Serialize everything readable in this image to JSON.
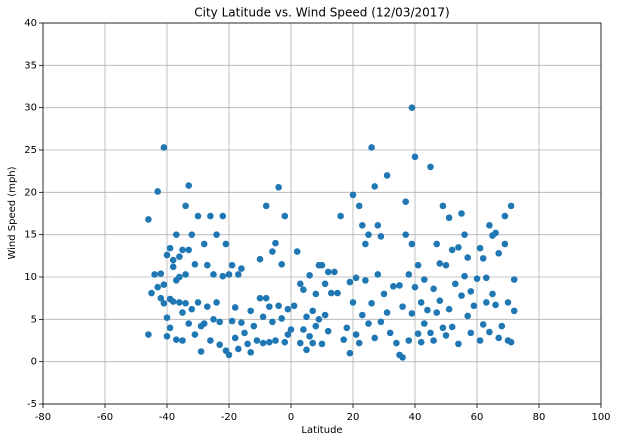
{
  "chart_data": {
    "type": "scatter",
    "title": "City Latitude vs. Wind Speed  (12/03/2017)",
    "x_label": "Latitude",
    "y_label": "Wind Speed (mph)",
    "color": "#1f77b4",
    "grid": true,
    "xlim": [
      -80,
      100
    ],
    "xticks": [
      -80,
      -60,
      -40,
      -20,
      0,
      20,
      40,
      60,
      80,
      100
    ],
    "ylim": [
      -5,
      40
    ],
    "yticks": [
      -5,
      0,
      5,
      10,
      15,
      20,
      25,
      30,
      35,
      40
    ],
    "x": [
      -46,
      -46,
      -45,
      -44,
      -43,
      -43,
      -42,
      -42,
      -41,
      -41,
      -41,
      -40,
      -40,
      -40,
      -39,
      -39,
      -39,
      -38,
      -38,
      -38,
      -37,
      -37,
      -37,
      -36,
      -36,
      -36,
      -35,
      -35,
      -35,
      -34,
      -34,
      -34,
      -33,
      -33,
      -33,
      -32,
      -32,
      -31,
      -31,
      -30,
      -30,
      -29,
      -29,
      -28,
      -28,
      -27,
      -27,
      -26,
      -26,
      -25,
      -25,
      -24,
      -24,
      -23,
      -23,
      -22,
      -22,
      -21,
      -21,
      -20,
      -20,
      -19,
      -19,
      -18,
      -18,
      -17,
      -17,
      -16,
      -16,
      -15,
      -14,
      -13,
      -13,
      -12,
      -11,
      -10,
      -10,
      -9,
      -9,
      -8,
      -8,
      -7,
      -7,
      -6,
      -6,
      -5,
      -5,
      -4,
      -4,
      -3,
      -3,
      -2,
      -2,
      -1,
      -1,
      0,
      1,
      2,
      3,
      3,
      4,
      4,
      5,
      5,
      6,
      6,
      7,
      7,
      8,
      8,
      9,
      9,
      10,
      10,
      11,
      11,
      12,
      12,
      13,
      14,
      15,
      16,
      17,
      18,
      19,
      19,
      20,
      20,
      21,
      21,
      22,
      22,
      23,
      23,
      24,
      24,
      25,
      25,
      26,
      26,
      27,
      27,
      28,
      28,
      29,
      29,
      30,
      31,
      31,
      32,
      33,
      34,
      35,
      35,
      36,
      36,
      37,
      37,
      38,
      38,
      39,
      39,
      39,
      40,
      40,
      41,
      41,
      42,
      42,
      43,
      43,
      44,
      45,
      45,
      46,
      46,
      47,
      47,
      48,
      48,
      49,
      49,
      50,
      50,
      51,
      51,
      52,
      52,
      53,
      54,
      54,
      55,
      55,
      56,
      56,
      57,
      57,
      58,
      58,
      59,
      60,
      61,
      61,
      62,
      62,
      63,
      63,
      64,
      64,
      65,
      65,
      66,
      66,
      67,
      67,
      68,
      69,
      69,
      70,
      70,
      71,
      71,
      72,
      72
    ],
    "values": [
      16.8,
      3.2,
      8.1,
      10.3,
      20.1,
      8.8,
      7.5,
      10.4,
      25.3,
      9.1,
      6.9,
      12.6,
      5.2,
      3.0,
      13.4,
      7.4,
      4.0,
      12.0,
      11.2,
      7.1,
      15.0,
      9.6,
      2.6,
      12.4,
      10.0,
      7.0,
      13.2,
      5.8,
      2.5,
      18.4,
      10.3,
      6.9,
      20.8,
      13.2,
      4.5,
      15.0,
      6.2,
      11.5,
      3.2,
      17.2,
      7.0,
      4.2,
      1.2,
      13.9,
      4.5,
      11.4,
      6.5,
      17.2,
      2.5,
      5.0,
      10.3,
      15.0,
      7.0,
      4.7,
      2.0,
      17.2,
      10.1,
      13.9,
      1.3,
      10.3,
      0.8,
      11.4,
      4.8,
      6.4,
      2.8,
      10.3,
      1.5,
      11.0,
      4.6,
      3.4,
      2.1,
      6.0,
      1.1,
      4.2,
      2.5,
      12.1,
      7.5,
      5.3,
      2.2,
      18.4,
      7.5,
      6.5,
      2.3,
      13.0,
      4.7,
      14.0,
      2.5,
      20.6,
      6.6,
      11.5,
      5.1,
      17.2,
      2.3,
      6.2,
      3.2,
      3.8,
      6.6,
      13.0,
      9.2,
      2.2,
      3.8,
      8.5,
      5.3,
      1.4,
      10.2,
      3.0,
      6.0,
      2.2,
      8.0,
      4.2,
      11.4,
      5.0,
      11.4,
      2.1,
      9.2,
      5.5,
      10.6,
      3.6,
      8.1,
      10.6,
      8.1,
      17.2,
      2.6,
      4.0,
      9.4,
      1.0,
      19.7,
      7.0,
      9.9,
      3.2,
      18.4,
      2.2,
      16.1,
      5.5,
      13.9,
      9.6,
      15.0,
      4.5,
      25.3,
      6.9,
      20.7,
      2.8,
      16.1,
      10.3,
      14.8,
      4.7,
      8.0,
      22.0,
      5.8,
      3.4,
      8.9,
      2.2,
      9.0,
      0.8,
      6.5,
      0.5,
      18.9,
      15.0,
      10.3,
      2.5,
      30.0,
      13.9,
      5.7,
      24.2,
      8.8,
      11.4,
      3.3,
      7.0,
      2.3,
      9.7,
      4.5,
      6.1,
      23.0,
      3.4,
      8.6,
      2.5,
      13.9,
      5.8,
      11.6,
      7.2,
      18.4,
      4.0,
      11.4,
      3.1,
      17.0,
      6.2,
      13.2,
      4.1,
      9.2,
      13.5,
      2.1,
      17.5,
      7.8,
      15.0,
      10.1,
      12.3,
      5.4,
      8.3,
      3.4,
      6.6,
      9.8,
      13.4,
      2.5,
      12.2,
      4.4,
      9.9,
      7.0,
      16.1,
      3.5,
      14.9,
      8.0,
      15.2,
      6.7,
      12.8,
      2.8,
      4.2,
      17.2,
      13.9,
      2.5,
      7.0,
      18.4,
      2.3,
      9.7,
      6.0
    ]
  }
}
